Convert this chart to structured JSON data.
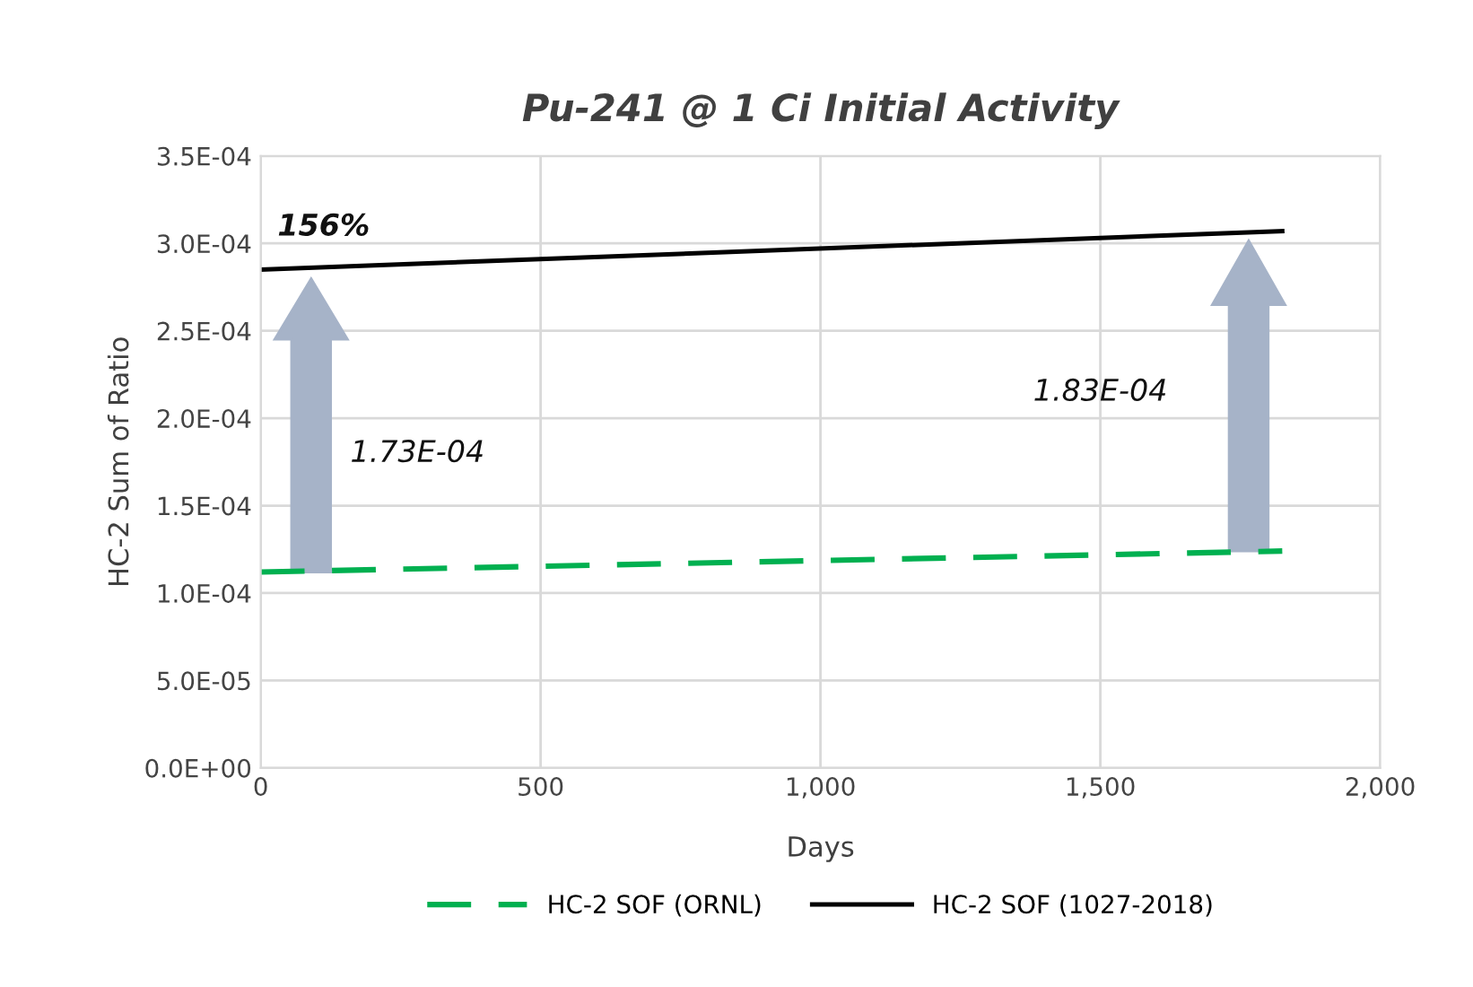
{
  "chart_data": {
    "type": "line",
    "title": "Pu-241 @ 1 Ci Initial Activity",
    "xlabel": "Days",
    "ylabel": "HC-2 Sum of Ratio",
    "series": [
      {
        "name": "HC-2 SOF (ORNL)",
        "color": "#00b050",
        "line_style": "dashed",
        "values": [
          0.000112,
          0.000124
        ]
      },
      {
        "name": "HC-2 SOF (1027-2018)",
        "color": "#000000",
        "line_style": "solid",
        "values": [
          0.000285,
          0.000307
        ]
      }
    ],
    "x": [
      0,
      1825
    ],
    "xlim": [
      0,
      2000
    ],
    "xticks": [
      0,
      500,
      {
        "value": 1000,
        "label": "1,000"
      },
      {
        "value": 1500,
        "label": "1,500"
      },
      {
        "value": 2000,
        "label": "2,000"
      }
    ],
    "ylim": [
      0,
      0.00035
    ],
    "yticks": [
      {
        "value": 0,
        "label": "0.0E+00"
      },
      {
        "value": 5e-05,
        "label": "5.0E-05"
      },
      {
        "value": 0.0001,
        "label": "1.0E-04"
      },
      {
        "value": 0.00015,
        "label": "1.5E-04"
      },
      {
        "value": 0.0002,
        "label": "2.0E-04"
      },
      {
        "value": 0.00025,
        "label": "2.5E-04"
      },
      {
        "value": 0.0003,
        "label": "3.0E-04"
      },
      {
        "value": 0.00035,
        "label": "3.5E-04"
      }
    ],
    "annotations": [
      "156%",
      "1.73E-04",
      "1.83E-04"
    ],
    "grid": true,
    "legend": "bottom",
    "marker": "none"
  }
}
